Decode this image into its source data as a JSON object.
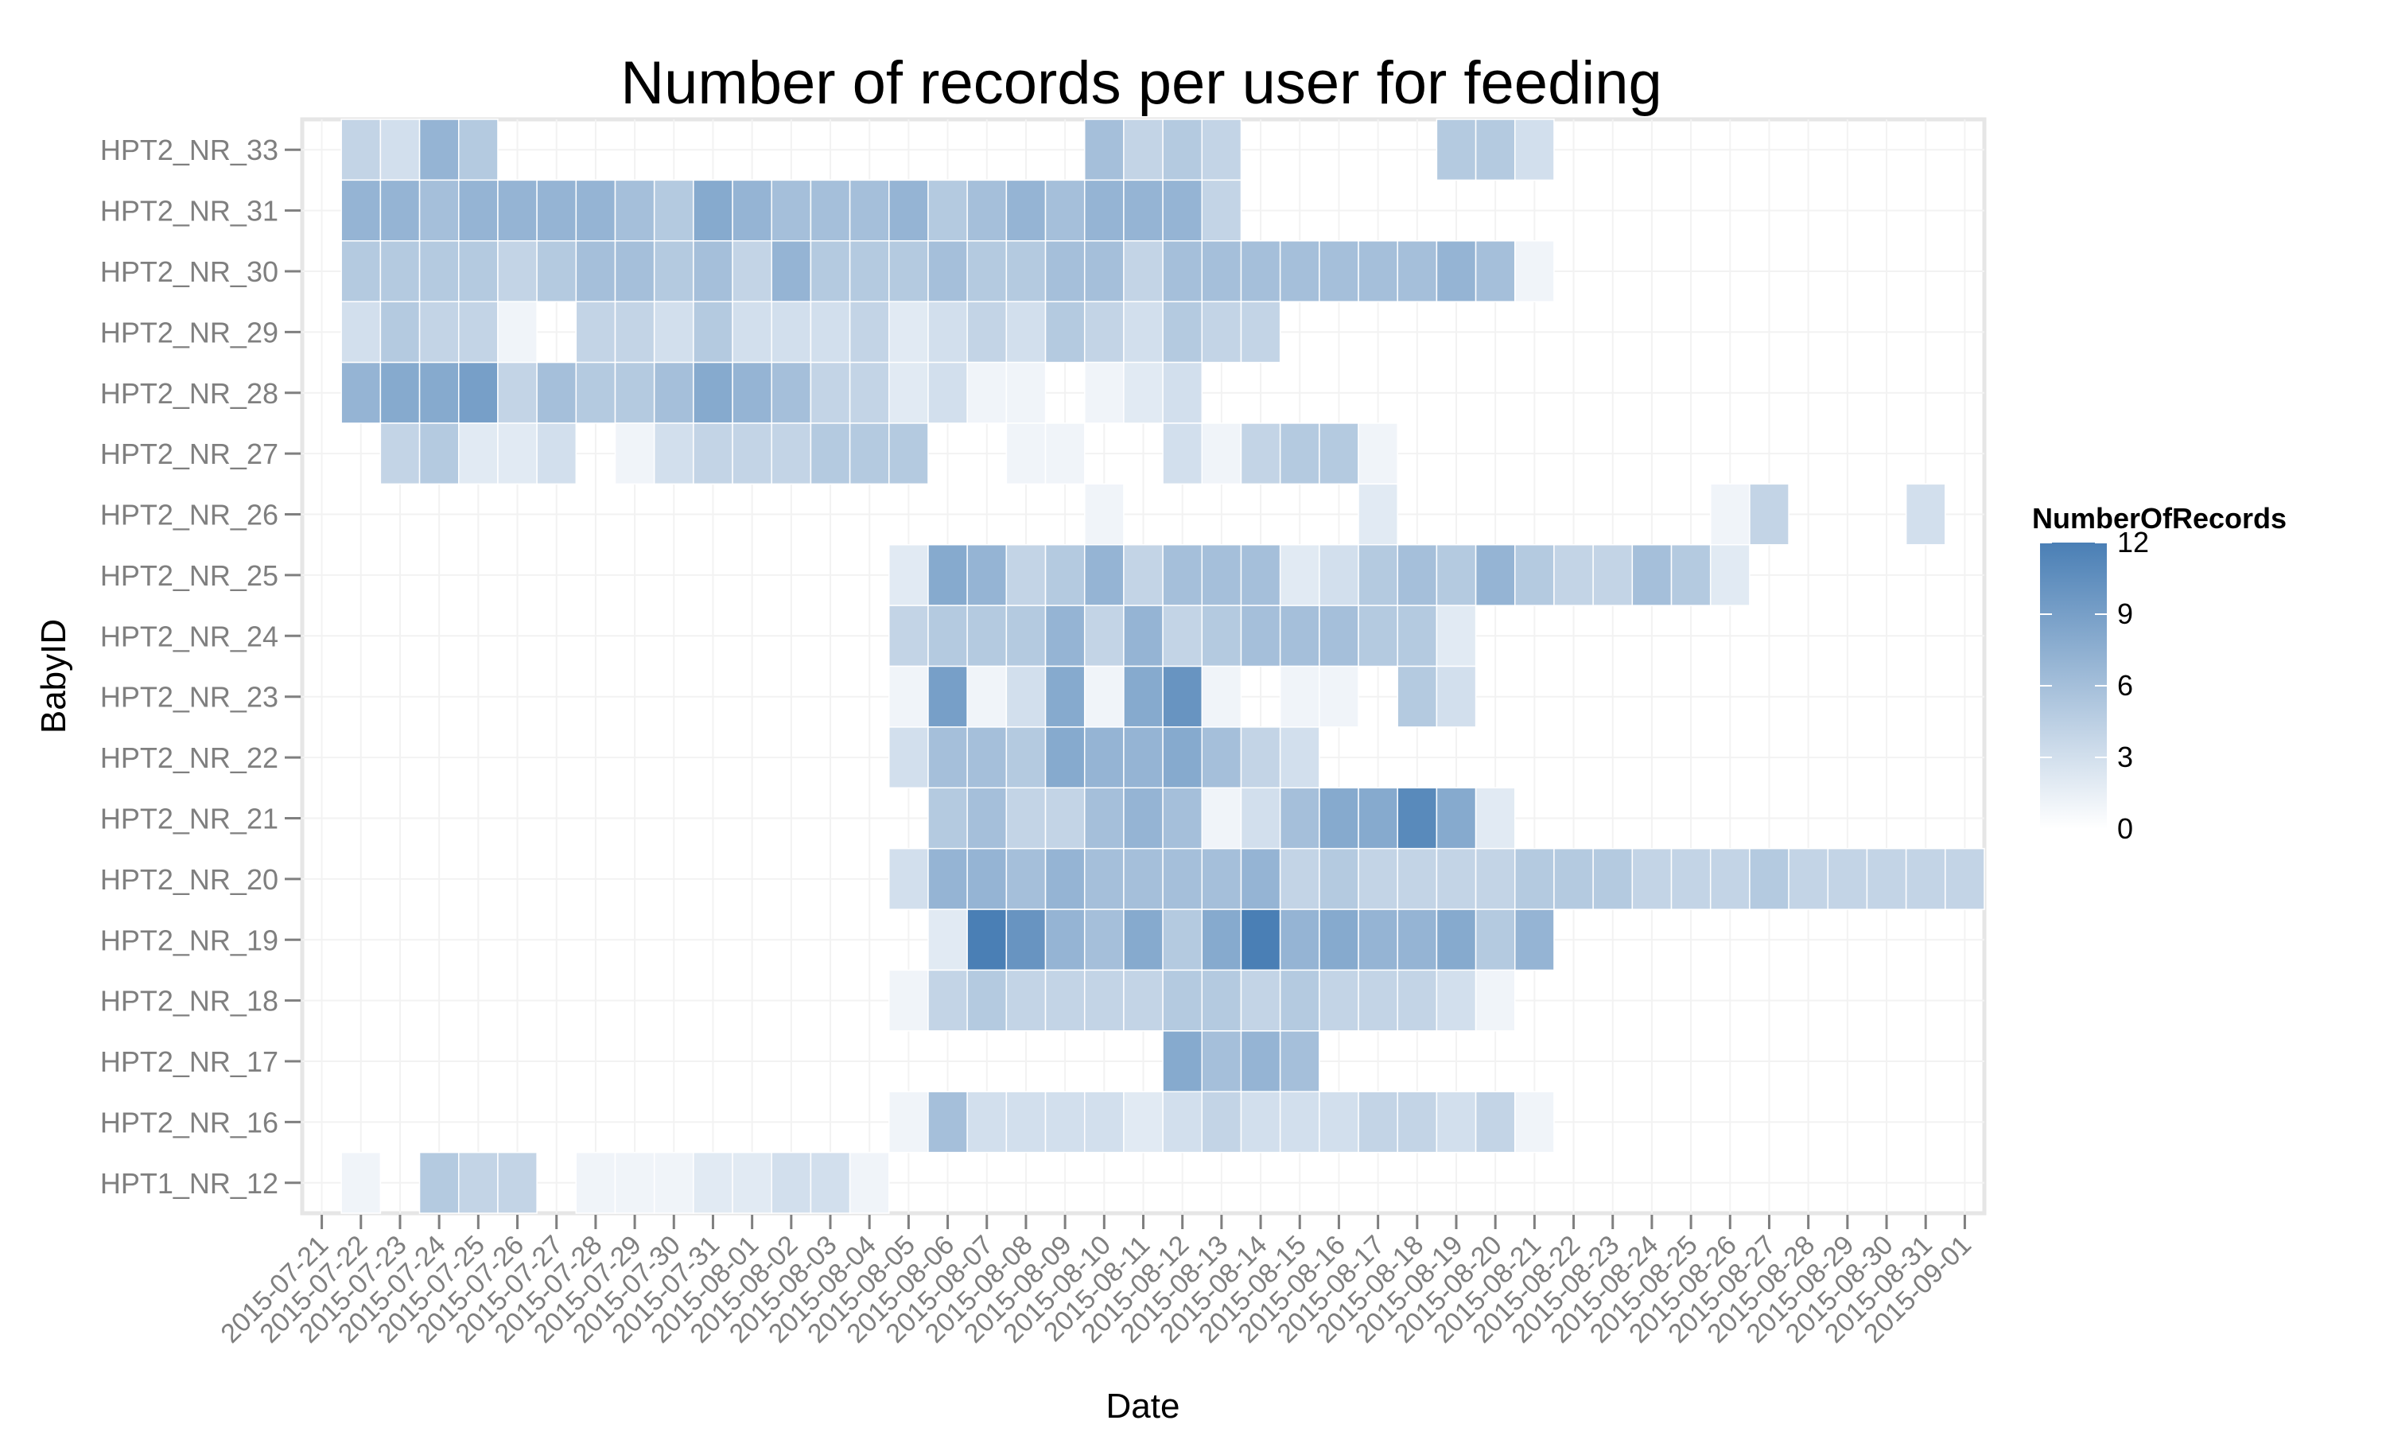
{
  "chart_data": {
    "type": "heatmap",
    "title": "Number of records per user for feeding",
    "xlabel": "Date",
    "ylabel": "BabyID",
    "legend": {
      "title": "NumberOfRecords",
      "position": "right",
      "ticks": [
        "0",
        "3",
        "6",
        "9",
        "12"
      ],
      "range": [
        0,
        12
      ]
    },
    "colors": {
      "low": "#ffffff",
      "high": "#4a7fb5",
      "panel_background": "#ffffff",
      "tick_label": "#7f7f7f",
      "panel_border": "#e6e6e6"
    },
    "grid": true,
    "x": [
      "2015-07-21",
      "2015-07-22",
      "2015-07-23",
      "2015-07-24",
      "2015-07-25",
      "2015-07-26",
      "2015-07-27",
      "2015-07-28",
      "2015-07-29",
      "2015-07-30",
      "2015-07-31",
      "2015-08-01",
      "2015-08-02",
      "2015-08-03",
      "2015-08-04",
      "2015-08-05",
      "2015-08-06",
      "2015-08-07",
      "2015-08-08",
      "2015-08-09",
      "2015-08-10",
      "2015-08-11",
      "2015-08-12",
      "2015-08-13",
      "2015-08-14",
      "2015-08-15",
      "2015-08-16",
      "2015-08-17",
      "2015-08-18",
      "2015-08-19",
      "2015-08-20",
      "2015-08-21",
      "2015-08-22",
      "2015-08-23",
      "2015-08-24",
      "2015-08-25",
      "2015-08-26",
      "2015-08-27",
      "2015-08-28",
      "2015-08-29",
      "2015-08-30",
      "2015-08-31",
      "2015-09-01"
    ],
    "rows": [
      {
        "id": "HPT2_NR_33",
        "values": [
          null,
          4,
          3,
          7,
          5,
          null,
          null,
          null,
          null,
          null,
          null,
          null,
          null,
          null,
          null,
          null,
          null,
          null,
          null,
          null,
          6,
          4,
          5,
          4,
          null,
          null,
          null,
          null,
          null,
          5,
          5,
          3,
          null,
          null,
          null,
          null,
          null,
          null,
          null,
          null,
          null,
          null,
          null
        ]
      },
      {
        "id": "HPT2_NR_31",
        "values": [
          null,
          7,
          7,
          6,
          7,
          7,
          7,
          7,
          6,
          5,
          8,
          7,
          6,
          6,
          6,
          7,
          5,
          6,
          7,
          6,
          7,
          7,
          7,
          4,
          null,
          null,
          null,
          null,
          null,
          null,
          null,
          null,
          null,
          null,
          null,
          null,
          null,
          null,
          null,
          null,
          null,
          null,
          null
        ]
      },
      {
        "id": "HPT2_NR_30",
        "values": [
          null,
          5,
          5,
          5,
          5,
          4,
          5,
          6,
          6,
          5,
          6,
          4,
          7,
          5,
          5,
          5,
          6,
          5,
          5,
          6,
          6,
          4,
          6,
          6,
          6,
          6,
          6,
          6,
          6,
          7,
          6,
          1,
          null,
          null,
          null,
          null,
          null,
          null,
          null,
          null,
          null,
          null,
          null
        ]
      },
      {
        "id": "HPT2_NR_29",
        "values": [
          null,
          3,
          5,
          4,
          4,
          1,
          null,
          4,
          4,
          3,
          5,
          3,
          3,
          3,
          4,
          2,
          3,
          4,
          3,
          5,
          4,
          3,
          5,
          4,
          4,
          null,
          null,
          null,
          null,
          null,
          null,
          null,
          null,
          null,
          null,
          null,
          null,
          null,
          null,
          null,
          null,
          null,
          null
        ]
      },
      {
        "id": "HPT2_NR_28",
        "values": [
          null,
          7,
          8,
          8,
          9,
          4,
          6,
          5,
          5,
          6,
          8,
          7,
          6,
          4,
          4,
          2,
          3,
          1,
          1,
          null,
          1,
          2,
          3,
          null,
          null,
          null,
          null,
          null,
          null,
          null,
          null,
          null,
          null,
          null,
          null,
          null,
          null,
          null,
          null,
          null,
          null,
          null,
          null
        ]
      },
      {
        "id": "HPT2_NR_27",
        "values": [
          null,
          null,
          4,
          5,
          2,
          2,
          3,
          null,
          1,
          3,
          4,
          4,
          4,
          5,
          5,
          5,
          null,
          null,
          1,
          1,
          null,
          null,
          3,
          1,
          4,
          5,
          5,
          1,
          null,
          null,
          null,
          null,
          null,
          null,
          null,
          null,
          null,
          null,
          null,
          null,
          null,
          null,
          null
        ]
      },
      {
        "id": "HPT2_NR_26",
        "values": [
          null,
          null,
          null,
          null,
          null,
          null,
          null,
          null,
          null,
          null,
          null,
          null,
          null,
          null,
          null,
          null,
          null,
          null,
          null,
          null,
          1,
          null,
          null,
          null,
          null,
          null,
          null,
          2,
          null,
          null,
          null,
          null,
          null,
          null,
          null,
          null,
          1,
          4,
          null,
          null,
          null,
          3,
          null
        ]
      },
      {
        "id": "HPT2_NR_25",
        "values": [
          null,
          null,
          null,
          null,
          null,
          null,
          null,
          null,
          null,
          null,
          null,
          null,
          null,
          null,
          null,
          2,
          8,
          7,
          4,
          5,
          7,
          4,
          6,
          6,
          6,
          2,
          3,
          5,
          6,
          5,
          7,
          5,
          4,
          4,
          6,
          5,
          2,
          null,
          null,
          null,
          null,
          null,
          null
        ]
      },
      {
        "id": "HPT2_NR_24",
        "values": [
          null,
          null,
          null,
          null,
          null,
          null,
          null,
          null,
          null,
          null,
          null,
          null,
          null,
          null,
          null,
          4,
          5,
          5,
          5,
          7,
          4,
          7,
          4,
          5,
          6,
          6,
          6,
          5,
          5,
          2,
          null,
          null,
          null,
          null,
          null,
          null,
          null,
          null,
          null,
          null,
          null,
          null,
          null
        ]
      },
      {
        "id": "HPT2_NR_23",
        "values": [
          null,
          null,
          null,
          null,
          null,
          null,
          null,
          null,
          null,
          null,
          null,
          null,
          null,
          null,
          null,
          1,
          9,
          1,
          3,
          8,
          1,
          8,
          10,
          1,
          null,
          1,
          1,
          null,
          5,
          3,
          null,
          null,
          null,
          null,
          null,
          null,
          null,
          null,
          null,
          null,
          null,
          null,
          null
        ]
      },
      {
        "id": "HPT2_NR_22",
        "values": [
          null,
          null,
          null,
          null,
          null,
          null,
          null,
          null,
          null,
          null,
          null,
          null,
          null,
          null,
          null,
          3,
          6,
          6,
          5,
          8,
          7,
          7,
          8,
          6,
          4,
          3,
          null,
          null,
          null,
          null,
          null,
          null,
          null,
          null,
          null,
          null,
          null,
          null,
          null,
          null,
          null,
          null,
          null
        ]
      },
      {
        "id": "HPT2_NR_21",
        "values": [
          null,
          null,
          null,
          null,
          null,
          null,
          null,
          null,
          null,
          null,
          null,
          null,
          null,
          null,
          null,
          null,
          5,
          6,
          4,
          4,
          6,
          7,
          6,
          1,
          3,
          6,
          8,
          8,
          11,
          8,
          2,
          null,
          null,
          null,
          null,
          null,
          null,
          null,
          null,
          null,
          null,
          null,
          null
        ]
      },
      {
        "id": "HPT2_NR_20",
        "values": [
          null,
          null,
          null,
          null,
          null,
          null,
          null,
          null,
          null,
          null,
          null,
          null,
          null,
          null,
          null,
          3,
          7,
          7,
          6,
          7,
          6,
          6,
          6,
          6,
          7,
          4,
          5,
          4,
          4,
          4,
          4,
          5,
          5,
          5,
          4,
          4,
          4,
          5,
          4,
          4,
          4,
          4,
          4
        ]
      },
      {
        "id": "HPT2_NR_19",
        "values": [
          null,
          null,
          null,
          null,
          null,
          null,
          null,
          null,
          null,
          null,
          null,
          null,
          null,
          null,
          null,
          null,
          2,
          12,
          10,
          7,
          6,
          8,
          5,
          8,
          12,
          7,
          8,
          7,
          7,
          8,
          5,
          7,
          null,
          null,
          null,
          null,
          null,
          null,
          null,
          null,
          null,
          null,
          null
        ]
      },
      {
        "id": "HPT2_NR_18",
        "values": [
          null,
          null,
          null,
          null,
          null,
          null,
          null,
          null,
          null,
          null,
          null,
          null,
          null,
          null,
          null,
          1,
          4,
          5,
          4,
          4,
          4,
          4,
          5,
          5,
          4,
          5,
          4,
          4,
          4,
          3,
          1,
          null,
          null,
          null,
          null,
          null,
          null,
          null,
          null,
          null,
          null,
          null,
          null
        ]
      },
      {
        "id": "HPT2_NR_17",
        "values": [
          null,
          null,
          null,
          null,
          null,
          null,
          null,
          null,
          null,
          null,
          null,
          null,
          null,
          null,
          null,
          null,
          null,
          null,
          null,
          null,
          null,
          null,
          8,
          6,
          7,
          6,
          null,
          null,
          null,
          null,
          null,
          null,
          null,
          null,
          null,
          null,
          null,
          null,
          null,
          null,
          null,
          null,
          null
        ]
      },
      {
        "id": "HPT2_NR_16",
        "values": [
          null,
          null,
          null,
          null,
          null,
          null,
          null,
          null,
          null,
          null,
          null,
          null,
          null,
          null,
          null,
          1,
          6,
          3,
          3,
          3,
          3,
          2,
          3,
          4,
          3,
          3,
          3,
          4,
          4,
          3,
          4,
          1,
          null,
          null,
          null,
          null,
          null,
          null,
          null,
          null,
          null,
          null,
          null
        ]
      },
      {
        "id": "HPT1_NR_12",
        "values": [
          null,
          1,
          null,
          5,
          4,
          4,
          null,
          1,
          1,
          1,
          2,
          2,
          3,
          3,
          1,
          null,
          null,
          null,
          null,
          null,
          null,
          null,
          null,
          null,
          null,
          null,
          null,
          null,
          null,
          null,
          null,
          null,
          null,
          null,
          null,
          null,
          null,
          null,
          null,
          null,
          null,
          null,
          null
        ]
      }
    ]
  }
}
